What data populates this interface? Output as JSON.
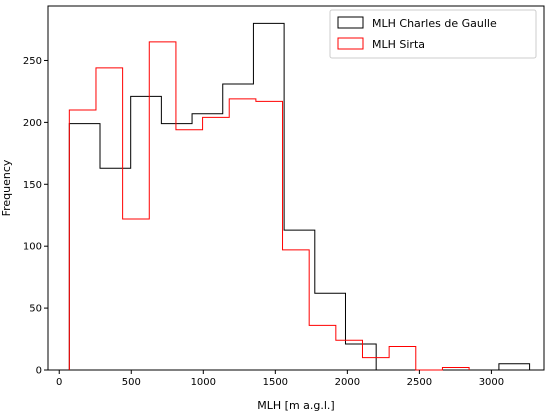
{
  "chart_data": {
    "type": "histogram",
    "title": "",
    "xlabel": "MLH [m a.g.l.]",
    "ylabel": "Frequency",
    "xlim": [
      -78,
      3365
    ],
    "ylim": [
      0,
      294
    ],
    "xticks": [
      0,
      500,
      1000,
      1500,
      2000,
      2500,
      3000
    ],
    "yticks": [
      0,
      50,
      100,
      150,
      200,
      250
    ],
    "grid": false,
    "legend_position": "top-right",
    "series": [
      {
        "name": "MLH Charles de Gaulle",
        "color": "#000000",
        "histtype": "step",
        "bin_edges": [
          70,
          283,
          496,
          709,
          922,
          1135,
          1348,
          1561,
          1774,
          1987,
          2200,
          2413,
          2626,
          2839,
          3052,
          3265
        ],
        "counts": [
          199,
          163,
          221,
          199,
          207,
          231,
          280,
          113,
          62,
          21,
          0,
          0,
          0,
          0,
          5
        ]
      },
      {
        "name": "MLH Sirta",
        "color": "#ff0000",
        "histtype": "step",
        "bin_edges": [
          70,
          255,
          440,
          625,
          810,
          995,
          1180,
          1365,
          1550,
          1735,
          1920,
          2105,
          2290,
          2475,
          2660,
          2845
        ],
        "counts": [
          210,
          244,
          122,
          265,
          194,
          204,
          219,
          217,
          97,
          36,
          24,
          10,
          19,
          0,
          2
        ]
      }
    ]
  }
}
